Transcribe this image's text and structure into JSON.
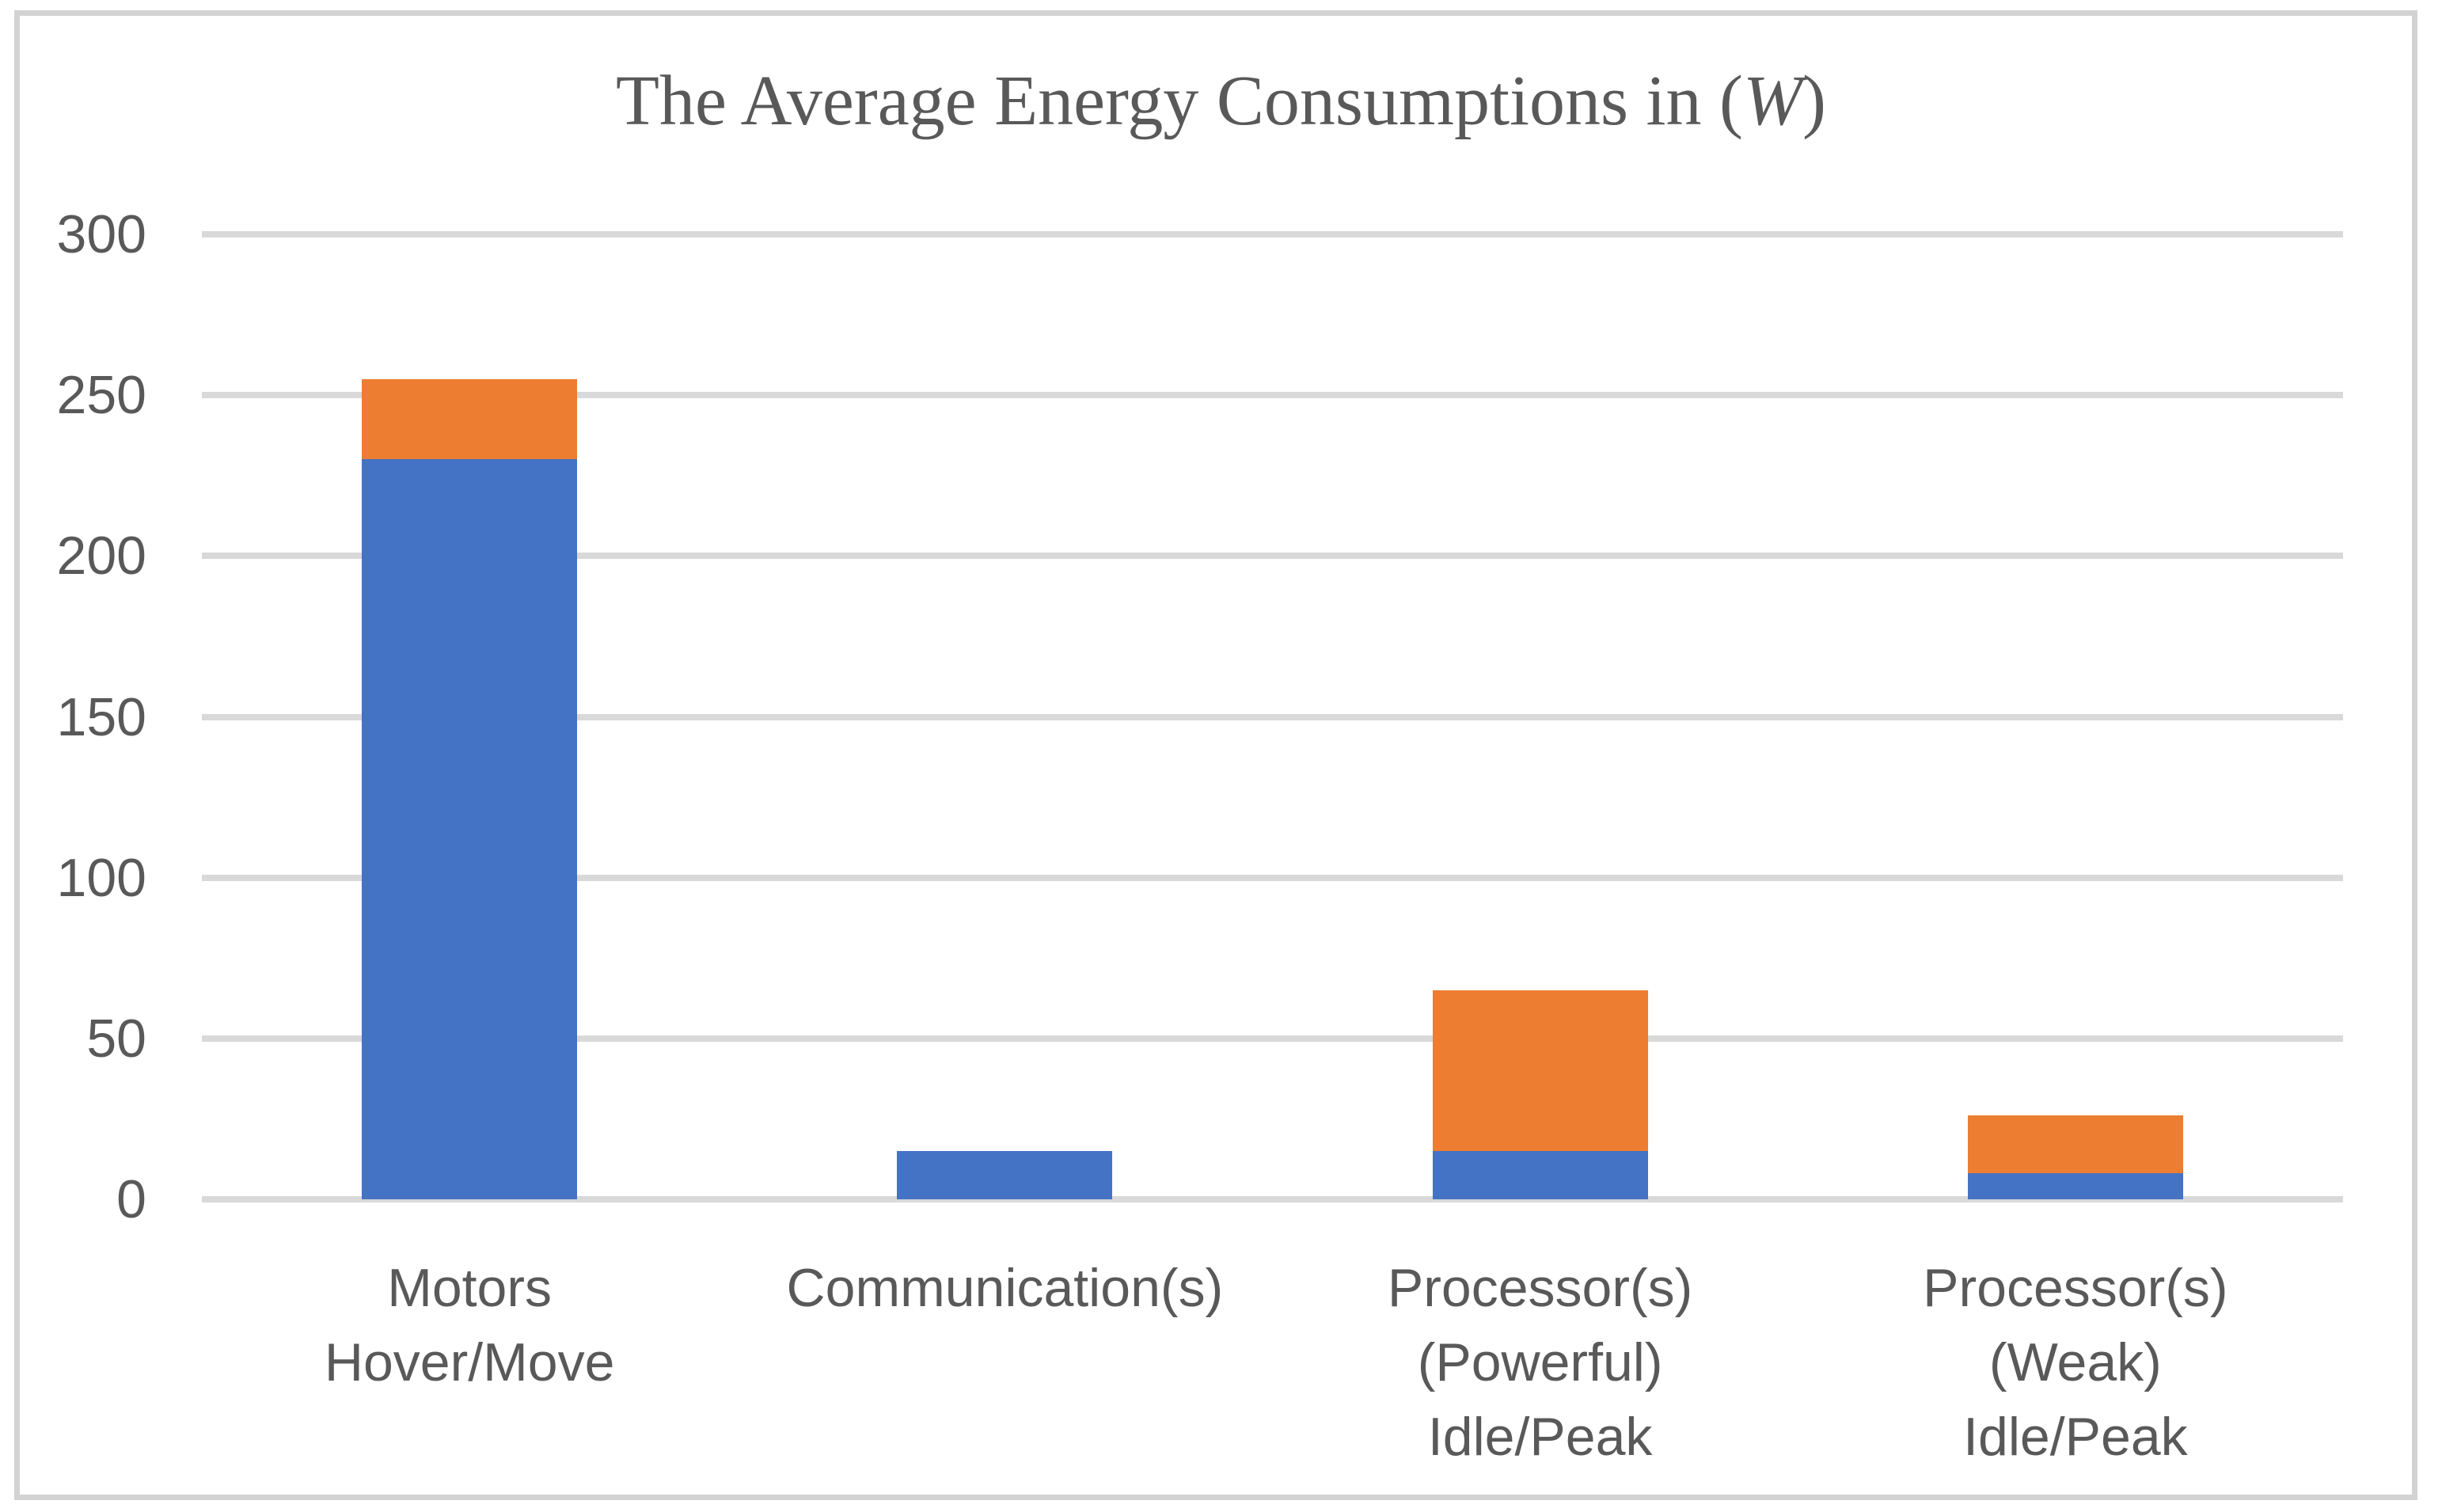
{
  "title": {
    "prefix": "The Average Energy Consumptions in (",
    "emphasis": "W",
    "suffix": ")"
  },
  "colors": {
    "series_blue": "#4472C4",
    "series_orange": "#ED7D31",
    "gridline": "#D9D9D9",
    "frame_border": "#D3D3D3",
    "text": "#595959",
    "background": "#FFFFFF"
  },
  "chart_data": {
    "type": "bar",
    "stacked": true,
    "title": "The Average Energy Consumptions in (W)",
    "xlabel": "",
    "ylabel": "",
    "categories": [
      "Motors Hover/Move",
      "Communication(s)",
      "Processor(s) (Powerful) Idle/Peak",
      "Processor(s) (Weak) Idle/Peak"
    ],
    "category_label_lines": [
      [
        "Motors",
        "Hover/Move"
      ],
      [
        "Communication(s)"
      ],
      [
        "Processor(s)",
        "(Powerful)",
        "Idle/Peak"
      ],
      [
        "Processor(s)",
        "(Weak)",
        "Idle/Peak"
      ]
    ],
    "series": [
      {
        "color": "#4472C4",
        "values": [
          230,
          15,
          15,
          8
        ]
      },
      {
        "color": "#ED7D31",
        "values": [
          25,
          0,
          50,
          18
        ]
      }
    ],
    "stack_totals": [
      255,
      15,
      65,
      26
    ],
    "ylim": [
      0,
      300
    ],
    "yticks": [
      0,
      50,
      100,
      150,
      200,
      250,
      300
    ],
    "grid": true,
    "legend": false
  }
}
